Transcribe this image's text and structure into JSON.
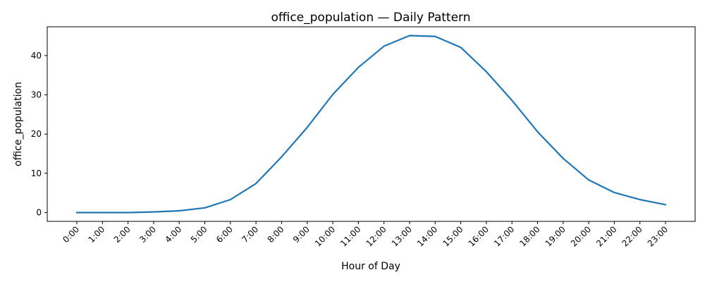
{
  "chart_data": {
    "type": "line",
    "title": "office_population — Daily Pattern",
    "xlabel": "Hour of Day",
    "ylabel": "office_population",
    "categories": [
      "0:00",
      "1:00",
      "2:00",
      "3:00",
      "4:00",
      "5:00",
      "6:00",
      "7:00",
      "8:00",
      "9:00",
      "10:00",
      "11:00",
      "12:00",
      "13:00",
      "14:00",
      "15:00",
      "16:00",
      "17:00",
      "18:00",
      "19:00",
      "20:00",
      "21:00",
      "22:00",
      "23:00"
    ],
    "series": [
      {
        "values": [
          0.0,
          0.0,
          0.0,
          0.15,
          0.45,
          1.2,
          3.3,
          7.4,
          14.2,
          21.7,
          30.1,
          37.0,
          42.4,
          45.1,
          44.9,
          42.1,
          35.9,
          28.6,
          20.6,
          13.8,
          8.3,
          5.1,
          3.3,
          2.0
        ],
        "color": "#1f77b4"
      }
    ],
    "ylim": [
      -2.25,
      47.35
    ],
    "yticks": [
      0,
      10,
      20,
      30,
      40
    ],
    "grid": false,
    "legend": "none"
  }
}
